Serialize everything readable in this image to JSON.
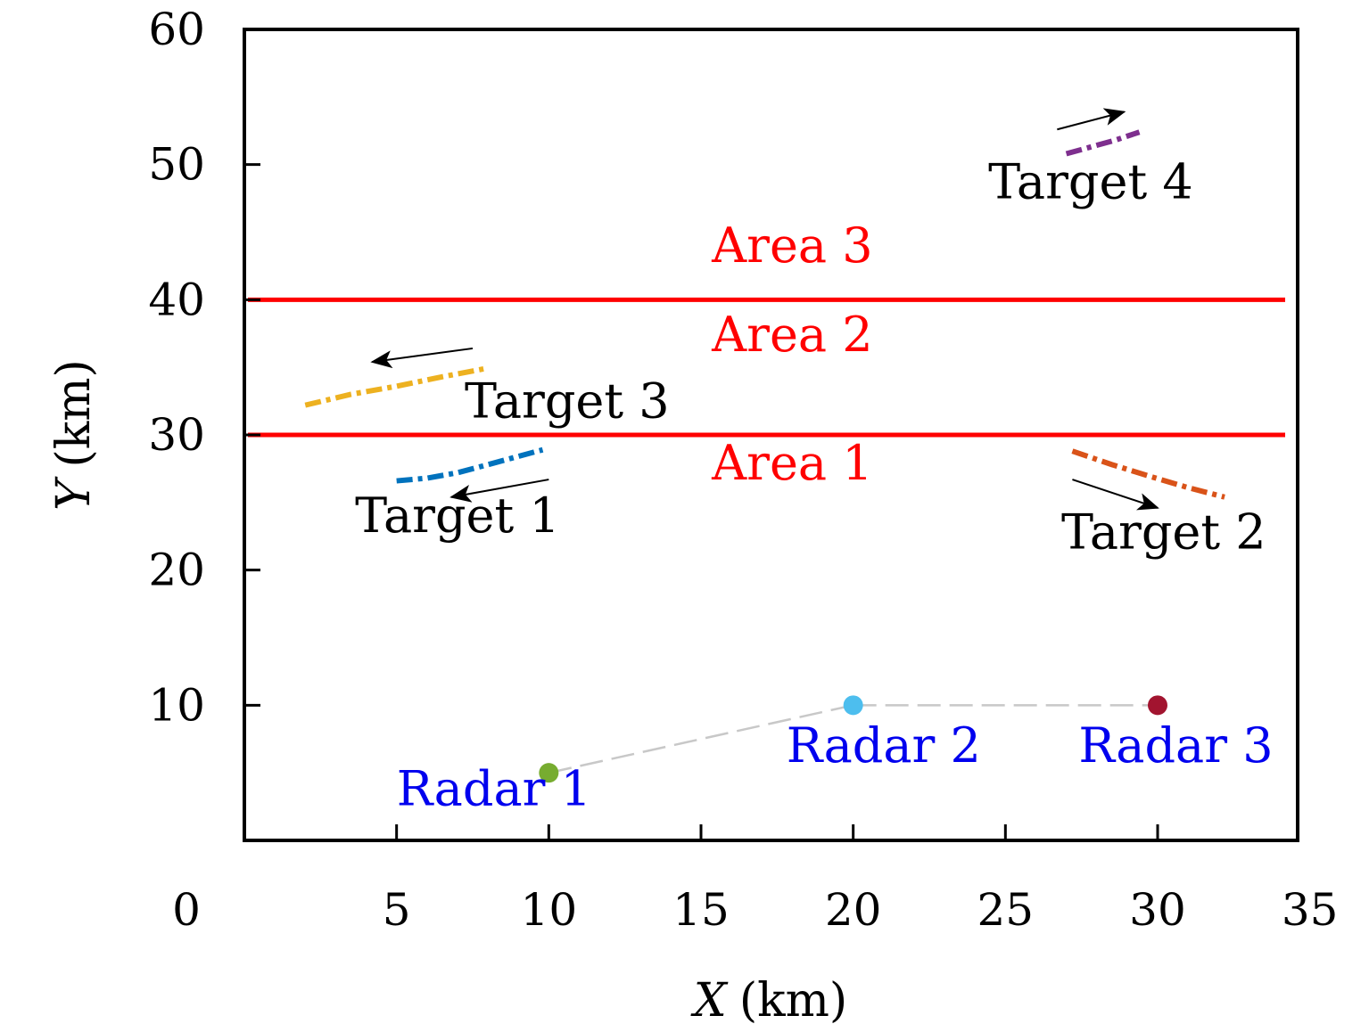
{
  "chart_data": {
    "type": "line",
    "xlabel_var": "X",
    "xlabel_unit": "(km)",
    "ylabel_var": "Y",
    "ylabel_unit": "(km)",
    "xlim": [
      0,
      35
    ],
    "ylim": [
      0,
      60
    ],
    "xticks": [
      0,
      5,
      10,
      15,
      20,
      25,
      30,
      35
    ],
    "yticks": [
      10,
      20,
      30,
      40,
      50,
      60
    ],
    "grid": false,
    "area_boundaries": [
      {
        "y": 30,
        "color": "#ff0000"
      },
      {
        "y": 40,
        "color": "#ff0000"
      }
    ],
    "area_labels": [
      {
        "text": "Area 1",
        "x": 18,
        "y": 26.7,
        "color": "#ff0000"
      },
      {
        "text": "Area 2",
        "x": 18,
        "y": 36.2,
        "color": "#ff0000"
      },
      {
        "text": "Area 3",
        "x": 18,
        "y": 42.8,
        "color": "#ff0000"
      }
    ],
    "radars": [
      {
        "name": "Radar 1",
        "x": 10,
        "y": 5,
        "color": "#77ac30",
        "label_x": 8.2,
        "label_y": 2.6
      },
      {
        "name": "Radar 2",
        "x": 20,
        "y": 10,
        "color": "#4dbeee",
        "label_x": 21,
        "label_y": 5.8
      },
      {
        "name": "Radar 3",
        "x": 30,
        "y": 10,
        "color": "#a2142f",
        "label_x": 30.6,
        "label_y": 5.8
      }
    ],
    "radar_link_color": "#c8c8c8",
    "targets": [
      {
        "name": "Target 1",
        "color": "#0072bd",
        "x": [
          5,
          6,
          7,
          8,
          9.8
        ],
        "y": [
          26.6,
          26.8,
          27.2,
          27.8,
          28.9
        ],
        "arrow": [
          [
            10,
            26.7
          ],
          [
            6.8,
            25.4
          ]
        ],
        "label_x": 7,
        "label_y": 22.8
      },
      {
        "name": "Target 2",
        "color": "#d95319",
        "x": [
          27.2,
          28.5,
          29.8,
          31,
          32.2
        ],
        "y": [
          28.8,
          27.8,
          26.9,
          26.1,
          25.4
        ],
        "arrow": [
          [
            27.2,
            26.7
          ],
          [
            30,
            24.6
          ]
        ],
        "label_x": 30.2,
        "label_y": 21.6
      },
      {
        "name": "Target 3",
        "color": "#edb120",
        "x": [
          2,
          3.5,
          5,
          6.5,
          7.9
        ],
        "y": [
          32.2,
          33,
          33.6,
          34.3,
          34.9
        ],
        "arrow": [
          [
            7.5,
            36.4
          ],
          [
            4.2,
            35.4
          ]
        ],
        "label_x": 10.6,
        "label_y": 31.3
      },
      {
        "name": "Target 4",
        "color": "#7e2f8e",
        "x": [
          27,
          27.8,
          28.6,
          29.4
        ],
        "y": [
          50.8,
          51.3,
          51.8,
          52.4
        ],
        "arrow": [
          [
            26.7,
            52.6
          ],
          [
            28.9,
            53.9
          ]
        ],
        "label_x": 27.8,
        "label_y": 47.5
      }
    ]
  }
}
